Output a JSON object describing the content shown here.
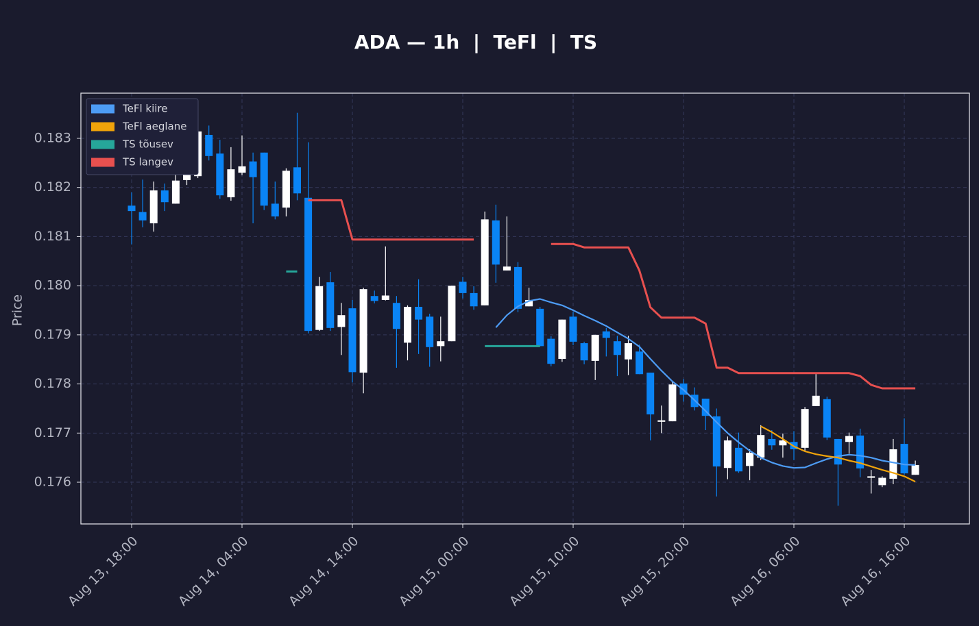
{
  "chart_data": {
    "type": "candlestick",
    "title": "ADA — 1h  |  TeFl  |  TS",
    "y_label": "Price",
    "x": [
      "Aug 13, 18:00",
      "Aug 13, 19:00",
      "Aug 13, 20:00",
      "Aug 13, 21:00",
      "Aug 13, 22:00",
      "Aug 13, 23:00",
      "Aug 14, 00:00",
      "Aug 14, 01:00",
      "Aug 14, 02:00",
      "Aug 14, 03:00",
      "Aug 14, 04:00",
      "Aug 14, 05:00",
      "Aug 14, 06:00",
      "Aug 14, 07:00",
      "Aug 14, 08:00",
      "Aug 14, 09:00",
      "Aug 14, 10:00",
      "Aug 14, 11:00",
      "Aug 14, 12:00",
      "Aug 14, 13:00",
      "Aug 14, 14:00",
      "Aug 14, 15:00",
      "Aug 14, 16:00",
      "Aug 14, 17:00",
      "Aug 14, 18:00",
      "Aug 14, 19:00",
      "Aug 14, 20:00",
      "Aug 14, 21:00",
      "Aug 14, 22:00",
      "Aug 14, 23:00",
      "Aug 15, 00:00",
      "Aug 15, 01:00",
      "Aug 15, 02:00",
      "Aug 15, 03:00",
      "Aug 15, 04:00",
      "Aug 15, 05:00",
      "Aug 15, 06:00",
      "Aug 15, 07:00",
      "Aug 15, 08:00",
      "Aug 15, 09:00",
      "Aug 15, 10:00",
      "Aug 15, 11:00",
      "Aug 15, 12:00",
      "Aug 15, 13:00",
      "Aug 15, 14:00",
      "Aug 15, 15:00",
      "Aug 15, 16:00",
      "Aug 15, 17:00",
      "Aug 15, 18:00",
      "Aug 15, 19:00",
      "Aug 15, 20:00",
      "Aug 15, 21:00",
      "Aug 15, 22:00",
      "Aug 15, 23:00",
      "Aug 16, 00:00",
      "Aug 16, 01:00",
      "Aug 16, 02:00",
      "Aug 16, 03:00",
      "Aug 16, 04:00",
      "Aug 16, 05:00",
      "Aug 16, 06:00",
      "Aug 16, 07:00",
      "Aug 16, 08:00",
      "Aug 16, 09:00",
      "Aug 16, 10:00",
      "Aug 16, 11:00",
      "Aug 16, 12:00",
      "Aug 16, 13:00",
      "Aug 16, 14:00",
      "Aug 16, 15:00",
      "Aug 16, 16:00",
      "Aug 16, 17:00"
    ],
    "ohlc": {
      "open": [
        0.18163,
        0.1815,
        0.18127,
        0.18194,
        0.18167,
        0.18215,
        0.18223,
        0.18307,
        0.18269,
        0.1818,
        0.1823,
        0.18253,
        0.18271,
        0.18167,
        0.18159,
        0.18241,
        0.18179,
        0.1791,
        0.18007,
        0.17916,
        0.17954,
        0.17823,
        0.17979,
        0.17971,
        0.17965,
        0.17884,
        0.17957,
        0.17937,
        0.17877,
        0.17887,
        0.18008,
        0.17985,
        0.1796,
        0.18133,
        0.18031,
        0.18038,
        0.17958,
        0.17953,
        0.17892,
        0.17851,
        0.17937,
        0.17883,
        0.17847,
        0.17907,
        0.17887,
        0.1785,
        0.17866,
        0.17823,
        0.17723,
        0.17724,
        0.17801,
        0.17778,
        0.1777,
        0.17734,
        0.17629,
        0.1767,
        0.17633,
        0.1765,
        0.17688,
        0.17675,
        0.17682,
        0.1767,
        0.17755,
        0.17769,
        0.17688,
        0.17682,
        0.17695,
        0.17609,
        0.17594,
        0.17607,
        0.17678,
        0.17615
      ],
      "high": [
        0.1819,
        0.18216,
        0.18212,
        0.18208,
        0.18241,
        0.18233,
        0.18324,
        0.18326,
        0.18297,
        0.18282,
        0.18306,
        0.18271,
        0.18271,
        0.18212,
        0.18239,
        0.18352,
        0.18292,
        0.18018,
        0.18028,
        0.17965,
        0.17971,
        0.17996,
        0.1799,
        0.1808,
        0.17979,
        0.1796,
        0.18013,
        0.17943,
        0.17937,
        0.18,
        0.18018,
        0.17999,
        0.18151,
        0.18165,
        0.18141,
        0.18048,
        0.17996,
        0.17957,
        0.17897,
        0.17931,
        0.17947,
        0.17886,
        0.179,
        0.17914,
        0.17898,
        0.17898,
        0.1788,
        0.17823,
        0.17756,
        0.17804,
        0.1781,
        0.17793,
        0.1777,
        0.1775,
        0.17693,
        0.17701,
        0.17667,
        0.17716,
        0.17706,
        0.17699,
        0.17704,
        0.17753,
        0.1782,
        0.17774,
        0.17688,
        0.17701,
        0.17709,
        0.17625,
        0.17612,
        0.17688,
        0.1773,
        0.17644
      ],
      "low": [
        0.18084,
        0.18119,
        0.1811,
        0.18152,
        0.18167,
        0.18205,
        0.18219,
        0.18255,
        0.18177,
        0.18173,
        0.18225,
        0.18127,
        0.18154,
        0.18135,
        0.18141,
        0.18174,
        0.17903,
        0.17908,
        0.17908,
        0.17859,
        0.17803,
        0.17781,
        0.17964,
        0.1797,
        0.17833,
        0.17848,
        0.17861,
        0.17835,
        0.17846,
        0.17887,
        0.17974,
        0.17951,
        0.1796,
        0.18006,
        0.18031,
        0.17946,
        0.17958,
        0.17877,
        0.17836,
        0.17845,
        0.17879,
        0.1784,
        0.17808,
        0.17856,
        0.17816,
        0.17818,
        0.1782,
        0.17685,
        0.177,
        0.17724,
        0.17764,
        0.17746,
        0.17706,
        0.17571,
        0.17606,
        0.17619,
        0.17604,
        0.17645,
        0.17666,
        0.1765,
        0.17645,
        0.17662,
        0.17755,
        0.17686,
        0.17552,
        0.17658,
        0.1761,
        0.17577,
        0.1759,
        0.17596,
        0.17615,
        0.17615
      ],
      "close": [
        0.18152,
        0.18133,
        0.18194,
        0.1817,
        0.18214,
        0.18226,
        0.18314,
        0.18264,
        0.18184,
        0.18237,
        0.18243,
        0.18221,
        0.18163,
        0.18141,
        0.18234,
        0.18188,
        0.17908,
        0.17999,
        0.17914,
        0.1794,
        0.17824,
        0.17993,
        0.17969,
        0.1798,
        0.17912,
        0.17957,
        0.17931,
        0.17875,
        0.17887,
        0.18,
        0.17985,
        0.17958,
        0.18135,
        0.18043,
        0.18039,
        0.17953,
        0.17971,
        0.17877,
        0.17841,
        0.17931,
        0.17886,
        0.17848,
        0.179,
        0.17894,
        0.17859,
        0.17883,
        0.1782,
        0.17738,
        0.17726,
        0.17799,
        0.17778,
        0.17753,
        0.17735,
        0.17632,
        0.17685,
        0.17622,
        0.1766,
        0.17696,
        0.17675,
        0.17685,
        0.17667,
        0.17749,
        0.17776,
        0.17691,
        0.17636,
        0.17694,
        0.17628,
        0.17612,
        0.17609,
        0.17667,
        0.17618,
        0.17635
      ],
      "up_color": "#ffffff",
      "down_color": "#0a84f5"
    },
    "series": [
      {
        "name": "TeFl kiire",
        "color": "#4d9cf5",
        "values": [
          null,
          null,
          null,
          null,
          null,
          null,
          null,
          null,
          null,
          null,
          null,
          null,
          null,
          null,
          null,
          null,
          null,
          null,
          null,
          null,
          null,
          null,
          null,
          null,
          null,
          null,
          null,
          null,
          null,
          null,
          null,
          null,
          null,
          0.17915,
          0.1794,
          0.17958,
          0.17969,
          0.17973,
          0.17966,
          0.1796,
          0.1795,
          0.17939,
          0.17929,
          0.17918,
          0.17905,
          0.17892,
          0.17876,
          0.17851,
          0.17827,
          0.17805,
          0.17788,
          0.17767,
          0.17745,
          0.17722,
          0.177,
          0.17681,
          0.17664,
          0.1765,
          0.1764,
          0.17633,
          0.17629,
          0.1763,
          0.17639,
          0.17647,
          0.17653,
          0.17656,
          0.17654,
          0.1765,
          0.17644,
          0.1764,
          0.17636,
          0.17635
        ]
      },
      {
        "name": "TeFl aeglane",
        "color": "#f0a30a",
        "values": [
          null,
          null,
          null,
          null,
          null,
          null,
          null,
          null,
          null,
          null,
          null,
          null,
          null,
          null,
          null,
          null,
          null,
          null,
          null,
          null,
          null,
          null,
          null,
          null,
          null,
          null,
          null,
          null,
          null,
          null,
          null,
          null,
          null,
          null,
          null,
          null,
          null,
          null,
          null,
          null,
          null,
          null,
          null,
          null,
          null,
          null,
          null,
          null,
          null,
          null,
          null,
          null,
          null,
          null,
          null,
          null,
          null,
          0.17714,
          0.17702,
          0.17688,
          0.17673,
          0.17663,
          0.17657,
          0.17653,
          0.1765,
          0.17644,
          0.17639,
          0.17632,
          0.17625,
          0.17619,
          0.17612,
          0.17601
        ]
      },
      {
        "name": "TS tõusev",
        "color": "#26a69a",
        "values": [
          null,
          null,
          null,
          null,
          null,
          null,
          null,
          null,
          null,
          null,
          null,
          null,
          null,
          null,
          0.18029,
          0.18029,
          null,
          null,
          null,
          null,
          null,
          null,
          null,
          null,
          null,
          null,
          null,
          null,
          null,
          null,
          null,
          null,
          0.17877,
          0.17877,
          0.17877,
          0.17877,
          0.17877,
          0.17877,
          null,
          null,
          null,
          null,
          null,
          null,
          null,
          null,
          null,
          null,
          null,
          null,
          null,
          null,
          null,
          null,
          null,
          null,
          null,
          null,
          null,
          null,
          null,
          null,
          null,
          null,
          null,
          null,
          null,
          null,
          null,
          null,
          null,
          null
        ]
      },
      {
        "name": "TS langev",
        "color": "#e8504f",
        "values": [
          null,
          null,
          null,
          null,
          null,
          null,
          null,
          null,
          null,
          null,
          null,
          null,
          null,
          null,
          null,
          null,
          0.18174,
          0.18174,
          0.18174,
          0.18174,
          0.18094,
          0.18094,
          0.18094,
          0.18094,
          0.18094,
          0.18094,
          0.18094,
          0.18094,
          0.18094,
          0.18094,
          0.18094,
          0.18094,
          null,
          null,
          null,
          null,
          null,
          null,
          0.18085,
          0.18085,
          0.18085,
          0.18078,
          0.18078,
          0.18078,
          0.18078,
          0.18078,
          0.18031,
          0.17956,
          0.17935,
          0.17935,
          0.17935,
          0.17935,
          0.17923,
          0.17833,
          0.17833,
          0.17822,
          0.17822,
          0.17822,
          0.17822,
          0.17822,
          0.17822,
          0.17822,
          0.17822,
          0.17822,
          0.17822,
          0.17822,
          0.17816,
          0.17798,
          0.17791,
          0.17791,
          0.17791,
          0.17791
        ]
      }
    ],
    "ylim": [
      0.17515,
      0.18392
    ],
    "yticks": [
      0.176,
      0.177,
      0.178,
      0.179,
      {
        "value": 0.18,
        "label": "0.180"
      },
      0.181,
      0.182,
      0.183
    ],
    "xticks": [
      "Aug 13, 18:00",
      "Aug 14, 04:00",
      "Aug 14, 14:00",
      "Aug 15, 00:00",
      "Aug 15, 10:00",
      "Aug 15, 20:00",
      "Aug 16, 06:00",
      "Aug 16, 16:00"
    ],
    "grid": true,
    "legend": "upper left"
  }
}
